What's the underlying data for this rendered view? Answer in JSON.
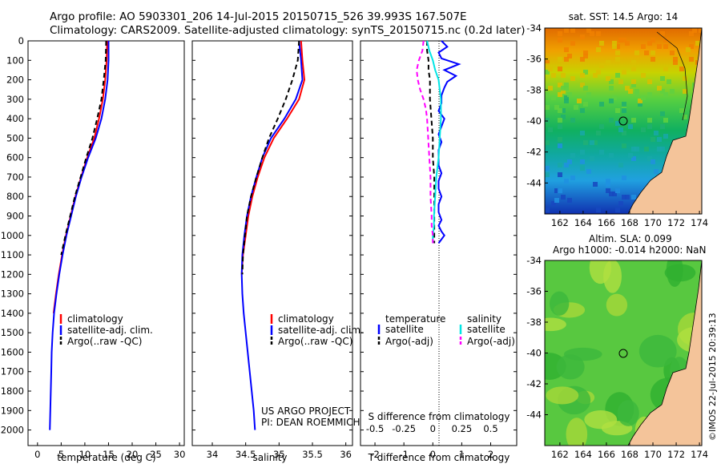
{
  "header": {
    "line1": "Argo profile: AO 5903301_206 14-Jul-2015 20150715_526 39.993S 167.507E",
    "line2": "Climatology: CARS2009. Satellite-adjusted climatology: synTS_20150715.nc (0.2d later)"
  },
  "colors": {
    "climatology": "#ff0000",
    "satellite": "#0000ff",
    "argo": "#000000",
    "salinity_satellite": "#00e5e5",
    "salinity_argo": "#ff00ff"
  },
  "chart_data": [
    {
      "id": "temperature",
      "type": "line",
      "xlabel": "temperature (deg C)",
      "xlim": [
        -2,
        31
      ],
      "xticks": [
        0,
        5,
        10,
        15,
        20,
        25,
        30
      ],
      "ylim": [
        0,
        2080
      ],
      "yticks": [
        0,
        100,
        200,
        300,
        400,
        500,
        600,
        700,
        800,
        900,
        1000,
        1100,
        1200,
        1300,
        1400,
        1500,
        1600,
        1700,
        1800,
        1900,
        2000
      ],
      "legend": [
        "climatology",
        "satellite-adj. clim.",
        "Argo(..raw -QC)"
      ],
      "series": [
        {
          "name": "climatology",
          "color": "#ff0000",
          "x": [
            14.7,
            14.6,
            14.3,
            13.8,
            13.0,
            12.0,
            10.5,
            9.2,
            8.0,
            7.0,
            6.0,
            5.2,
            4.5,
            3.9,
            3.4
          ],
          "y": [
            0,
            100,
            200,
            300,
            400,
            500,
            600,
            700,
            800,
            900,
            1000,
            1100,
            1200,
            1300,
            1400
          ]
        },
        {
          "name": "satellite-adj. clim.",
          "color": "#0000ff",
          "x": [
            15.0,
            15.0,
            14.8,
            14.3,
            13.5,
            12.3,
            10.7,
            9.3,
            8.1,
            7.1,
            6.1,
            5.3,
            4.6,
            4.0,
            3.5,
            3.2,
            3.0,
            2.9,
            2.8,
            2.7,
            2.6
          ],
          "y": [
            0,
            100,
            200,
            300,
            400,
            500,
            600,
            700,
            800,
            900,
            1000,
            1100,
            1200,
            1300,
            1400,
            1500,
            1600,
            1700,
            1800,
            1900,
            2000
          ]
        },
        {
          "name": "Argo(..raw -QC)",
          "color": "#000000",
          "dashed": true,
          "x": [
            14.5,
            14.4,
            14.0,
            13.5,
            12.6,
            11.6,
            10.3,
            9.1,
            7.9,
            6.9,
            5.9,
            5.0
          ],
          "y": [
            0,
            100,
            200,
            300,
            400,
            500,
            600,
            700,
            800,
            900,
            1000,
            1100
          ]
        }
      ]
    },
    {
      "id": "salinity",
      "type": "line",
      "xlabel": "salinity",
      "xlim": [
        33.7,
        36.1
      ],
      "xticks": [
        34,
        34.5,
        35,
        35.5,
        36
      ],
      "ylim": [
        0,
        2080
      ],
      "legend": [
        "climatology",
        "satellite-adj. clim.",
        "Argo(..raw -QC)"
      ],
      "series": [
        {
          "name": "climatology",
          "color": "#ff0000",
          "x": [
            35.33,
            35.35,
            35.38,
            35.3,
            35.12,
            34.92,
            34.78,
            34.68,
            34.6,
            34.54,
            34.5,
            34.46,
            34.44
          ],
          "y": [
            0,
            100,
            200,
            300,
            400,
            500,
            600,
            700,
            800,
            900,
            1000,
            1100,
            1200
          ]
        },
        {
          "name": "satellite-adj. clim.",
          "color": "#0000ff",
          "x": [
            35.3,
            35.33,
            35.35,
            35.25,
            35.08,
            34.88,
            34.75,
            34.66,
            34.58,
            34.52,
            34.48,
            34.45,
            34.44,
            34.45,
            34.47,
            34.5,
            34.53,
            34.56,
            34.59,
            34.62,
            34.64
          ],
          "y": [
            0,
            100,
            200,
            300,
            400,
            500,
            600,
            700,
            800,
            900,
            1000,
            1100,
            1200,
            1300,
            1400,
            1500,
            1600,
            1700,
            1800,
            1900,
            2000
          ]
        },
        {
          "name": "Argo(..raw -QC)",
          "color": "#000000",
          "dashed": true,
          "x": [
            35.3,
            35.28,
            35.2,
            35.1,
            34.98,
            34.85,
            34.75,
            34.66,
            34.58,
            34.52,
            34.49,
            34.46,
            34.45
          ],
          "y": [
            0,
            100,
            200,
            300,
            400,
            500,
            600,
            700,
            800,
            900,
            1000,
            1100,
            1200
          ]
        }
      ],
      "note": [
        "US ARGO PROJECT",
        "PI: DEAN ROEMMICH"
      ]
    },
    {
      "id": "differences",
      "type": "line",
      "xlabel_bottom": "T difference from climatology",
      "xlabel_top": "S difference from climatology",
      "xlim": [
        -2.5,
        2.9
      ],
      "xticks_bottom": [
        -2,
        -1,
        0,
        1,
        2
      ],
      "xticks_top": [
        -0.5,
        -0.25,
        0,
        0.25,
        0.5
      ],
      "ylim": [
        0,
        2080
      ],
      "legend": {
        "temperature_header": "temperature",
        "salinity_header": "salinity",
        "temperature": [
          "satellite",
          "Argo(-adj)"
        ],
        "salinity": [
          "satellite",
          "Argo(-adj)"
        ]
      },
      "series": [
        {
          "name": "T satellite",
          "color": "#0000ff",
          "x": [
            0.3,
            0.5,
            0.2,
            0.3,
            0.9,
            0.4,
            0.8,
            0.5,
            0.4,
            0.3,
            0.3,
            0.2,
            0.4,
            0.3,
            0.2,
            0.3,
            0.2,
            0.2,
            0.2,
            0.3,
            0.2,
            0.2,
            0.3,
            0.2,
            0.2,
            0.3,
            0.2,
            0.3,
            0.4,
            0.3,
            0.2
          ],
          "y": [
            0,
            30,
            60,
            90,
            120,
            150,
            180,
            210,
            240,
            280,
            320,
            360,
            400,
            440,
            480,
            520,
            560,
            600,
            640,
            680,
            720,
            760,
            800,
            840,
            880,
            920,
            950,
            980,
            1000,
            1020,
            1040
          ]
        },
        {
          "name": "T Argo(-adj)",
          "color": "#000000",
          "dashed": true,
          "x": [
            -0.2,
            -0.2,
            -0.15,
            -0.15,
            -0.1,
            -0.1,
            -0.05,
            0.0,
            0.0,
            0.05,
            0.05,
            0.05,
            0.05,
            0.05,
            0.05,
            0.05
          ],
          "y": [
            0,
            50,
            100,
            150,
            200,
            300,
            400,
            500,
            600,
            700,
            800,
            850,
            900,
            950,
            1000,
            1040
          ]
        },
        {
          "name": "S satellite",
          "color": "#00e5e5",
          "x": [
            -0.05,
            -0.03,
            0.0,
            0.02,
            0.05,
            0.06,
            0.07,
            0.07,
            0.06,
            0.05,
            0.03,
            0.02,
            0.01,
            0.01,
            0.0,
            0.0
          ],
          "y": [
            0,
            50,
            100,
            150,
            200,
            250,
            300,
            400,
            500,
            600,
            700,
            800,
            900,
            950,
            1000,
            1040
          ]
        },
        {
          "name": "S Argo(-adj)",
          "color": "#ff00ff",
          "dashed": true,
          "x": [
            -0.08,
            -0.09,
            -0.12,
            -0.14,
            -0.13,
            -0.11,
            -0.08,
            -0.06,
            -0.05,
            -0.04,
            -0.03,
            -0.02,
            -0.02,
            -0.01,
            -0.01,
            0.0,
            0.0
          ],
          "y": [
            0,
            50,
            100,
            150,
            200,
            250,
            300,
            350,
            400,
            500,
            600,
            700,
            800,
            900,
            950,
            1000,
            1040
          ]
        }
      ]
    },
    {
      "id": "sst-map",
      "type": "heatmap",
      "title": "sat. SST: 14.5 Argo: 14",
      "xlim": [
        160.7,
        174.2
      ],
      "ylim": [
        -46,
        -34
      ],
      "xticks": [
        162,
        164,
        166,
        168,
        170,
        172,
        174
      ],
      "yticks": [
        -34,
        -36,
        -38,
        -40,
        -42,
        -44
      ],
      "marker": {
        "lon": 167.5,
        "lat": -40
      }
    },
    {
      "id": "sla-map",
      "type": "heatmap",
      "title": "Altim. SLA: 0.099",
      "subtitle": "Argo h1000: -0.014 h2000: NaN",
      "xlim": [
        160.7,
        174.2
      ],
      "ylim": [
        -46,
        -34
      ],
      "xticks": [
        162,
        164,
        166,
        168,
        170,
        172,
        174
      ],
      "yticks": [
        -34,
        -36,
        -38,
        -40,
        -42,
        -44
      ],
      "marker": {
        "lon": 167.5,
        "lat": -40
      }
    }
  ],
  "footer": {
    "credit": "©IMOS 22-Jul-2015 20:39:13"
  }
}
